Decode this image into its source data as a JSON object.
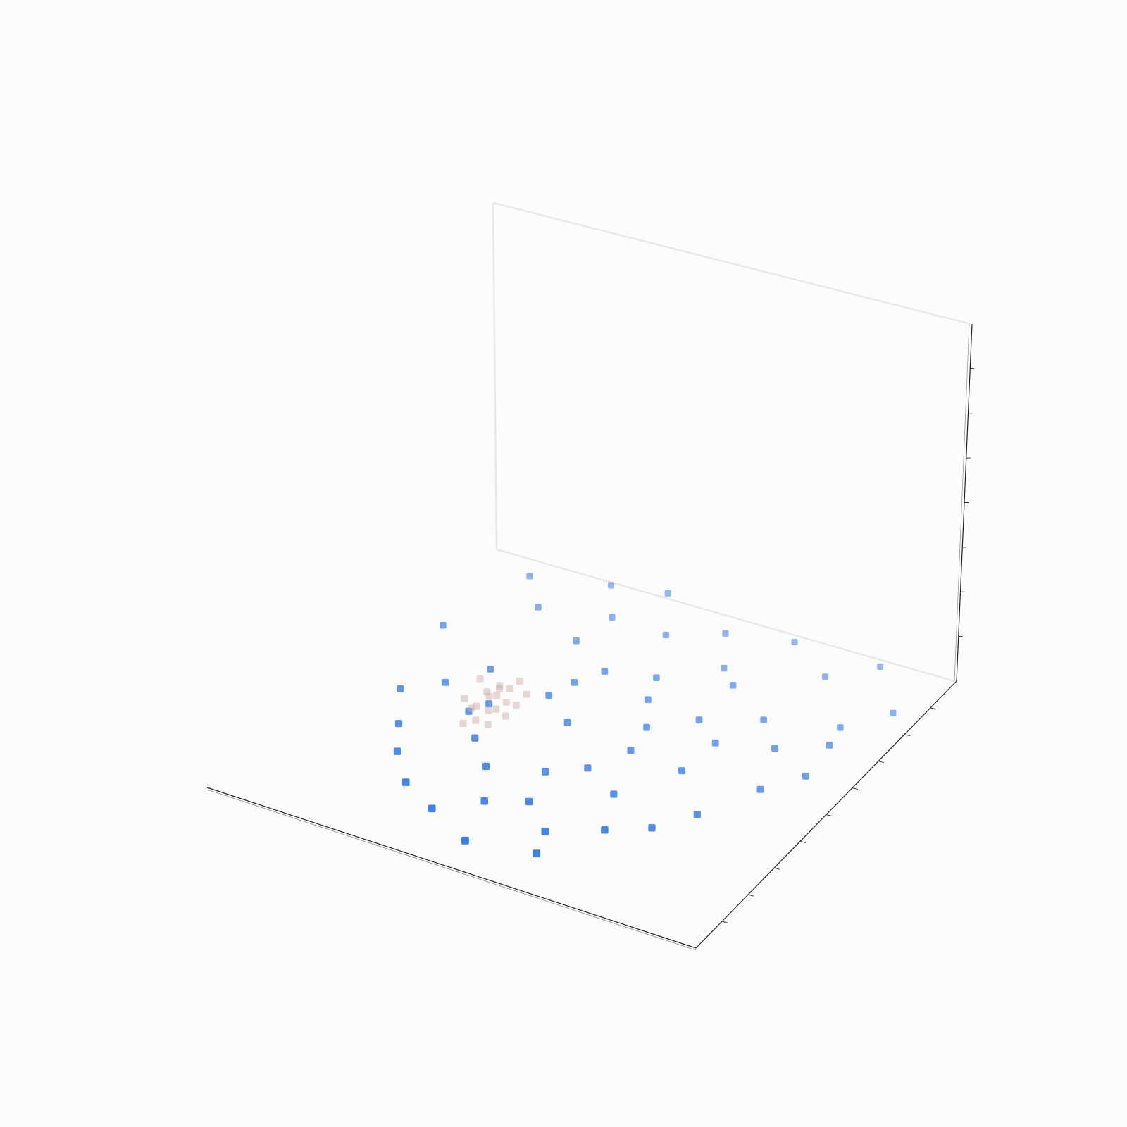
{
  "chart_data": {
    "type": "scatter",
    "projection": "3d",
    "title": "",
    "xlabel": "",
    "ylabel": "",
    "zlabel": "",
    "grid": false,
    "tick_labels_visible": false,
    "xlim": [
      0,
      10
    ],
    "ylim": [
      0,
      10
    ],
    "zlim": [
      0,
      10
    ],
    "series": [
      {
        "marker": "square",
        "color": "#2f78e8",
        "points": [
          [
            6.1,
            1.2,
            0
          ],
          [
            4.8,
            0.9,
            0
          ],
          [
            5.9,
            1.9,
            0
          ],
          [
            3.8,
            1.5,
            0
          ],
          [
            6.8,
            2.5,
            0
          ],
          [
            4.5,
            2.2,
            0
          ],
          [
            5.2,
            2.6,
            0
          ],
          [
            7.5,
            3.0,
            0
          ],
          [
            3.0,
            2.0,
            0
          ],
          [
            6.4,
            3.6,
            0
          ],
          [
            4.0,
            3.2,
            0
          ],
          [
            5.6,
            4.1,
            0
          ],
          [
            2.4,
            2.8,
            0
          ],
          [
            8.0,
            3.8,
            0
          ],
          [
            3.4,
            3.9,
            0
          ],
          [
            7.1,
            4.9,
            0
          ],
          [
            4.6,
            5.2,
            0
          ],
          [
            2.0,
            3.6,
            0
          ],
          [
            5.9,
            5.8,
            0
          ],
          [
            8.6,
            5.1,
            0
          ],
          [
            3.1,
            5.0,
            0
          ],
          [
            6.6,
            6.5,
            0
          ],
          [
            1.5,
            4.6,
            0
          ],
          [
            9.1,
            5.9,
            0
          ],
          [
            4.1,
            6.4,
            0
          ],
          [
            7.6,
            7.1,
            0
          ],
          [
            2.6,
            6.0,
            0
          ],
          [
            5.3,
            7.3,
            0
          ],
          [
            8.9,
            7.6,
            0
          ],
          [
            3.5,
            7.6,
            0
          ],
          [
            6.2,
            8.2,
            0
          ],
          [
            1.2,
            6.8,
            0
          ],
          [
            4.8,
            8.6,
            0
          ],
          [
            7.9,
            8.9,
            0
          ],
          [
            2.4,
            8.2,
            0
          ],
          [
            5.7,
            9.2,
            0
          ],
          [
            9.5,
            8.5,
            0
          ],
          [
            3.2,
            9.5,
            0
          ],
          [
            6.9,
            9.6,
            0
          ],
          [
            4.2,
            9.8,
            0
          ],
          [
            1.8,
            9.0,
            0
          ],
          [
            8.6,
            9.7,
            0
          ],
          [
            2.9,
            4.6,
            0
          ],
          [
            6.0,
            5.0,
            0
          ],
          [
            7.2,
            6.0,
            0
          ],
          [
            3.9,
            5.8,
            0
          ],
          [
            5.0,
            3.6,
            0
          ],
          [
            8.2,
            6.4,
            0
          ],
          [
            2.1,
            5.2,
            0
          ],
          [
            4.4,
            7.0,
            0
          ],
          [
            6.6,
            7.8,
            0
          ],
          [
            9.0,
            7.0,
            0
          ],
          [
            3.7,
            8.6,
            0
          ],
          [
            5.5,
            6.6,
            0
          ]
        ]
      },
      {
        "marker": "square",
        "color": "#c9a59a",
        "opacity": 0.55,
        "points": [
          [
            3.1,
            4.0,
            0.2
          ],
          [
            3.3,
            4.1,
            0.3
          ],
          [
            3.5,
            4.2,
            0.2
          ],
          [
            3.2,
            4.3,
            0.5
          ],
          [
            3.4,
            4.4,
            0.4
          ],
          [
            3.6,
            4.3,
            0.6
          ],
          [
            3.0,
            4.2,
            0.7
          ],
          [
            3.3,
            4.5,
            0.8
          ],
          [
            3.5,
            4.6,
            0.9
          ],
          [
            3.7,
            4.5,
            0.3
          ],
          [
            3.1,
            4.6,
            1.0
          ],
          [
            3.4,
            4.7,
            0.6
          ],
          [
            3.6,
            4.8,
            0.8
          ],
          [
            3.2,
            4.8,
            0.4
          ],
          [
            3.8,
            4.7,
            0.5
          ],
          [
            3.0,
            4.5,
            0.2
          ],
          [
            3.5,
            4.9,
            0.3
          ],
          [
            3.3,
            5.0,
            0.6
          ],
          [
            3.7,
            5.0,
            0.9
          ],
          [
            3.9,
            4.9,
            0.7
          ]
        ]
      }
    ]
  }
}
